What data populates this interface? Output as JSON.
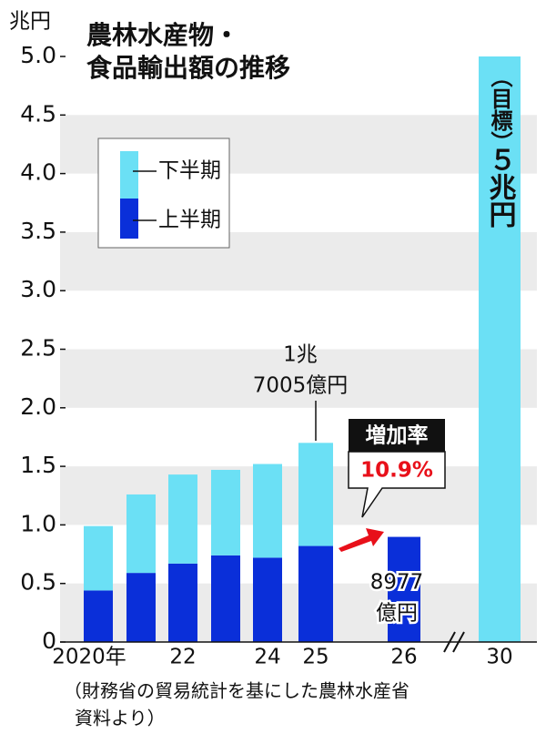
{
  "chart_data": {
    "type": "bar",
    "stacked": true,
    "title": [
      "農林水産物・",
      "食品輸出額の推移"
    ],
    "y_label": "兆円",
    "categories": [
      "2020年",
      null,
      "22",
      null,
      "24",
      "25",
      "26",
      "30"
    ],
    "series": [
      {
        "name": "上半期",
        "color": "#0a2fd9",
        "values": [
          0.44,
          0.59,
          0.67,
          0.74,
          0.72,
          0.82,
          0.8977,
          null
        ]
      },
      {
        "name": "下半期",
        "color": "#6be0f5",
        "values": [
          0.55,
          0.67,
          0.76,
          0.73,
          0.8,
          0.8805,
          null,
          5
        ]
      }
    ],
    "ylim": [
      0,
      5
    ],
    "yticks": [
      0,
      0.5,
      {
        "value": 1,
        "label": "1.0"
      },
      1.5,
      {
        "value": 2,
        "label": "2.0"
      },
      2.5,
      {
        "value": 3,
        "label": "3.0"
      },
      3.5,
      {
        "value": 4,
        "label": "4.0"
      },
      4.5,
      {
        "value": 5,
        "label": "5.0"
      }
    ],
    "grid_bands": true,
    "legend_position": "upper left",
    "annotations": {
      "total_2025": [
        "1兆",
        "7005億円"
      ],
      "first_half_2026": [
        "8977",
        "億円"
      ],
      "growth_label": "増加率",
      "growth_rate": "10.9%",
      "target": [
        "（目標）",
        "５兆円"
      ]
    },
    "source": [
      "（財務省の貿易統計を基にした農林水産省",
      "資料より）"
    ]
  }
}
